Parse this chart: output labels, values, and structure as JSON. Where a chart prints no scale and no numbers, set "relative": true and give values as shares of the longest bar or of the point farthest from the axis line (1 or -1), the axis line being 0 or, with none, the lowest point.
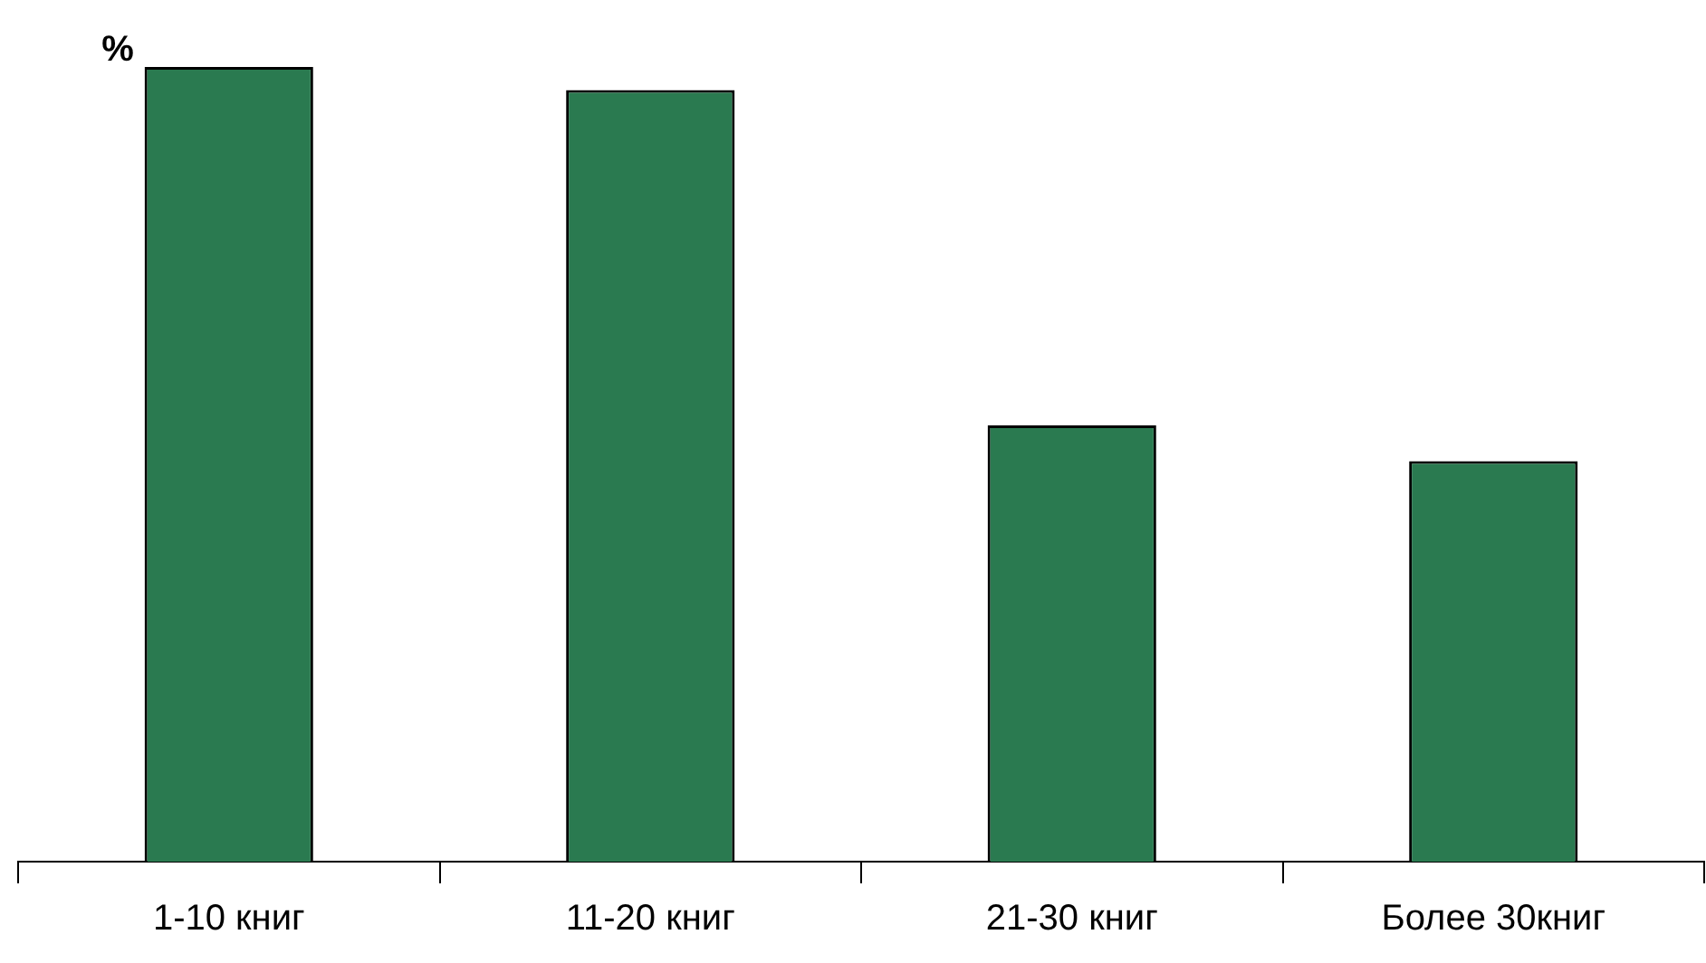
{
  "chart_data": {
    "type": "bar",
    "ylabel": "%",
    "relative": true,
    "categories": [
      "1-10 книг",
      "11-20 книг",
      "21-30 книг",
      "Более 30книг"
    ],
    "values": [
      1,
      0.971,
      0.549,
      0.504
    ],
    "color": "#2a7a50",
    "grid": false,
    "legend": false
  }
}
